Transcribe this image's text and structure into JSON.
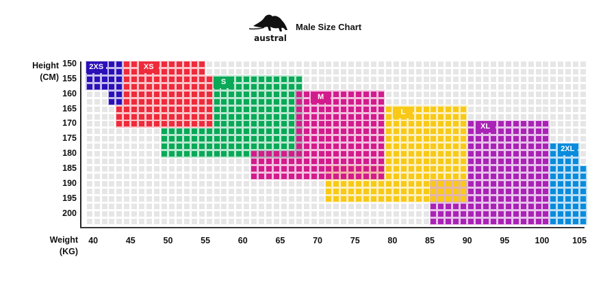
{
  "header": {
    "title": "Male Size Chart",
    "logo_text": "austral"
  },
  "chart_data": {
    "type": "heatmap",
    "title": "Male Size Chart",
    "ylabel": [
      "Height",
      "(CM)"
    ],
    "xlabel": [
      "Weight",
      "(KG)"
    ],
    "y_ticks": [
      150,
      155,
      160,
      165,
      170,
      175,
      180,
      185,
      190,
      195,
      200
    ],
    "x_ticks": [
      40,
      45,
      50,
      55,
      60,
      65,
      70,
      75,
      80,
      85,
      90,
      95,
      100,
      105
    ],
    "y_step": 2.5,
    "x_step": 1,
    "x_range": [
      40,
      106
    ],
    "y_range": [
      150,
      202.5
    ],
    "empty_color": "#e6e6e6",
    "sizes": [
      {
        "name": "2XS",
        "color": "#2b10b8",
        "label_at": [
          40,
          150
        ],
        "regions": [
          [
            40,
            44,
            150,
            157.5
          ],
          [
            43,
            44,
            160,
            162.5
          ]
        ]
      },
      {
        "name": "XS",
        "color": "#ee2b3b",
        "label_at": [
          47,
          150
        ],
        "regions": [
          [
            45,
            55,
            150,
            152.5
          ],
          [
            45,
            56,
            155,
            162.5
          ],
          [
            44,
            56,
            165,
            170
          ]
        ]
      },
      {
        "name": "S",
        "color": "#08a957",
        "label_at": [
          57,
          155
        ],
        "regions": [
          [
            57,
            68,
            155,
            170
          ],
          [
            50,
            68,
            172.5,
            180
          ]
        ]
      },
      {
        "name": "XL",
        "color": "#a923b5",
        "label_at": [
          92,
          170
        ],
        "regions": [
          [
            91,
            101,
            170,
            187.5
          ],
          [
            86,
            101,
            190,
            202.5
          ]
        ]
      },
      {
        "name": "L",
        "color": "#f8c917",
        "label_at": [
          81,
          165
        ],
        "regions": [
          [
            80,
            90,
            165,
            182.5
          ],
          [
            72,
            90,
            185,
            195
          ]
        ]
      },
      {
        "name": "M",
        "color": "#d31c8c",
        "label_at": [
          70,
          160
        ],
        "regions": [
          [
            68,
            79,
            160,
            177.5
          ],
          [
            62,
            79,
            180,
            187.5
          ]
        ]
      },
      {
        "name": "2XL",
        "color": "#0a8bdc",
        "label_at": [
          103,
          177.5
        ],
        "regions": [
          [
            102,
            105,
            177.5,
            182.5
          ],
          [
            102,
            106,
            185,
            202.5
          ]
        ]
      }
    ]
  }
}
